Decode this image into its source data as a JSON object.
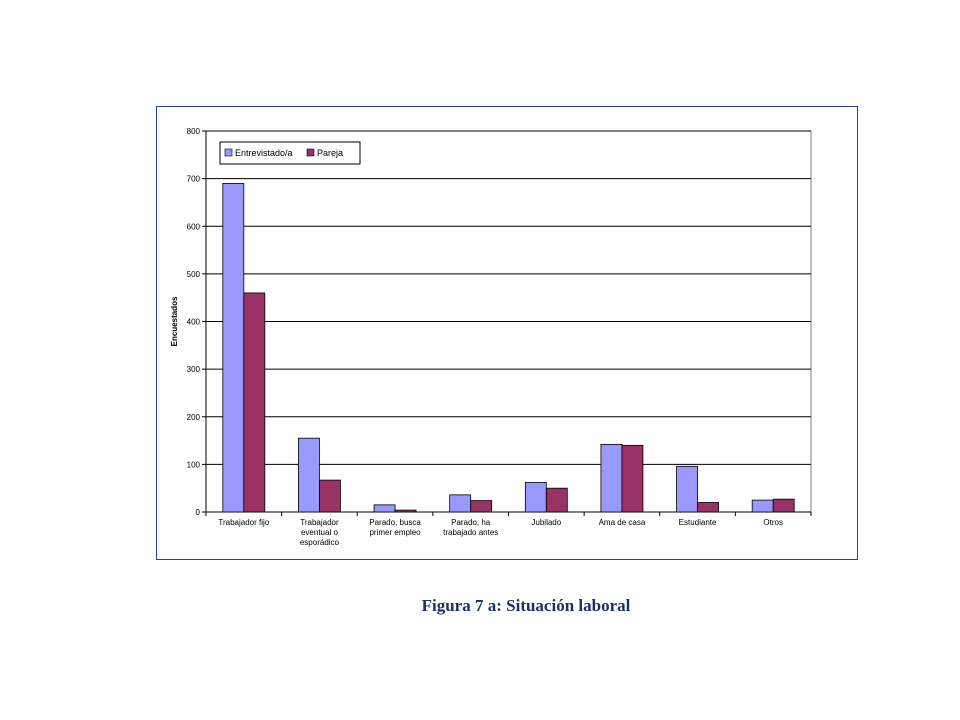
{
  "caption": "Figura 7 a: Situación laboral",
  "chart_data": {
    "type": "bar",
    "categories": [
      [
        "Trabajador fijo"
      ],
      [
        "Trabajador",
        "eventual o",
        "esporádico"
      ],
      [
        "Parado, busca",
        "primer empleo"
      ],
      [
        "Parado, ha",
        "trabajado antes"
      ],
      [
        "Jubilado"
      ],
      [
        "Ama de casa"
      ],
      [
        "Estudiante"
      ],
      [
        "Otros"
      ]
    ],
    "series": [
      {
        "name": "Entrevistado/a",
        "color": "#9999ff",
        "values": [
          690,
          155,
          15,
          36,
          62,
          142,
          96,
          25
        ]
      },
      {
        "name": "Pareja",
        "color": "#993366",
        "values": [
          460,
          67,
          4,
          24,
          50,
          140,
          20,
          27
        ]
      }
    ],
    "ylabel": "Encuestados",
    "ylim": [
      0,
      800
    ],
    "yticks": [
      0,
      100,
      200,
      300,
      400,
      500,
      600,
      700,
      800
    ],
    "grid": true,
    "legend": "top-left"
  }
}
